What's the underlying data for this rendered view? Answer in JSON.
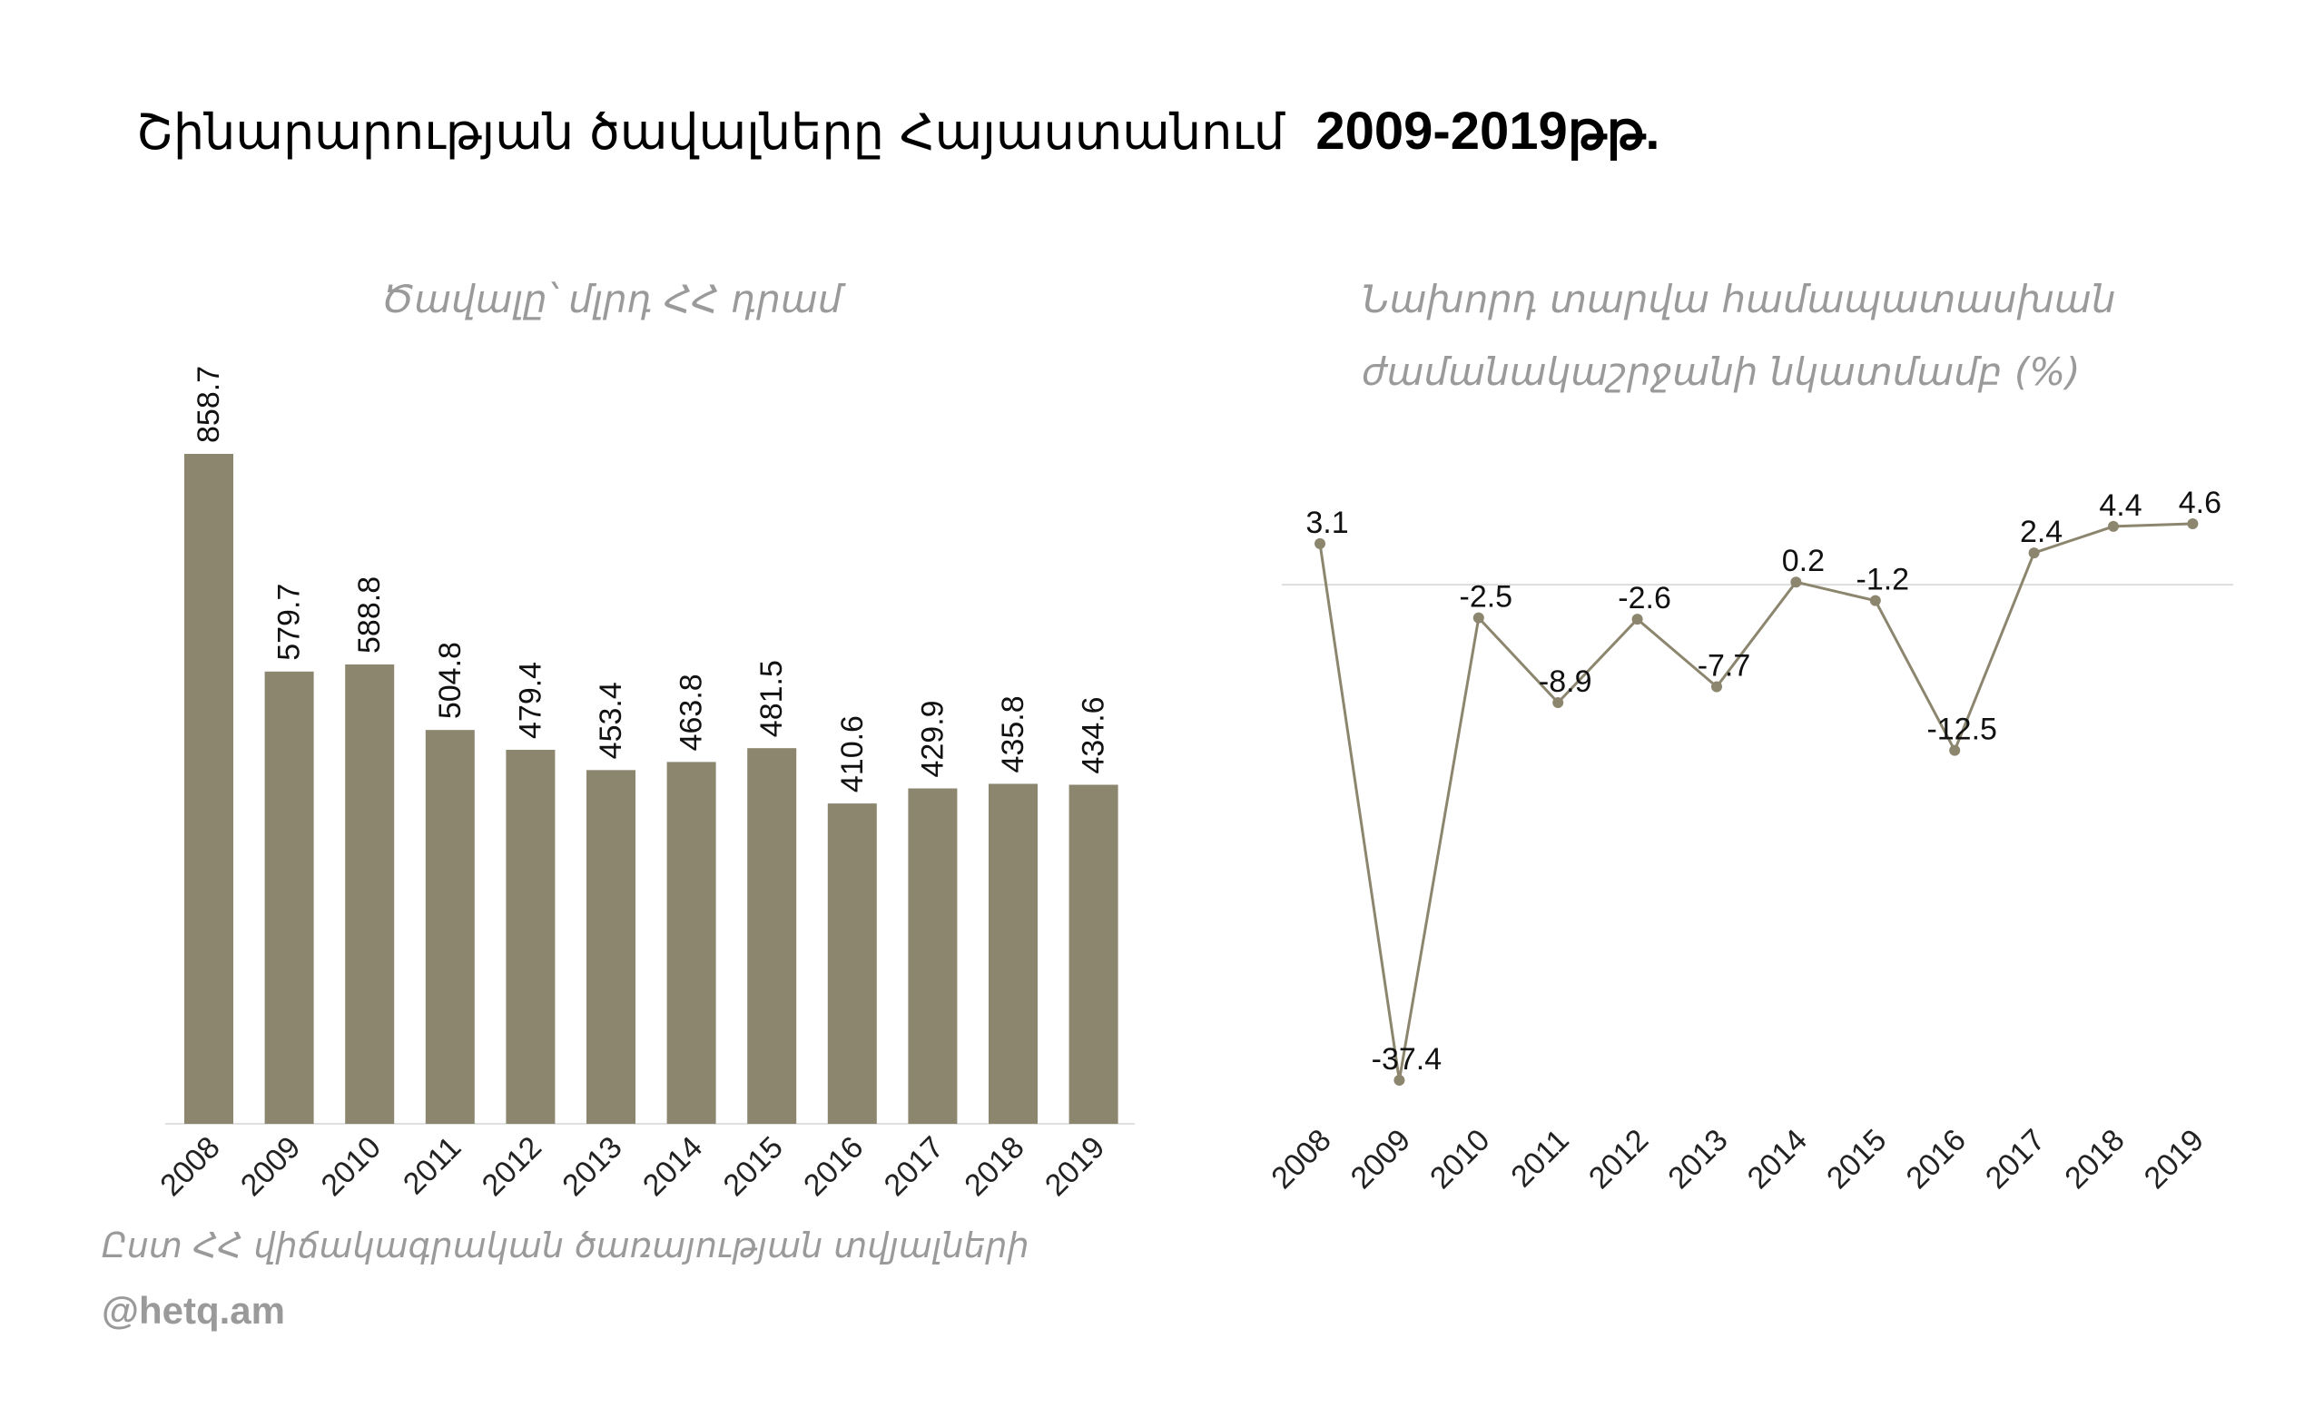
{
  "title": {
    "text": "Շինարարության ծավալները Հայաստանում",
    "years": "2009-2019թթ."
  },
  "source": "Ըստ ՀՀ վիճակագրական ծառայության տվյալների",
  "handle": "@hetq.am",
  "colors": {
    "bar": "#8c866f",
    "line": "#8c866f",
    "zero_line": "#dddddd",
    "axis": "#e0e0e0"
  },
  "chart_data": [
    {
      "type": "bar",
      "title": "Ծավալը՝ մլրդ ՀՀ դրամ",
      "categories": [
        "2008",
        "2009",
        "2010",
        "2011",
        "2012",
        "2013",
        "2014",
        "2015",
        "2016",
        "2017",
        "2018",
        "2019"
      ],
      "values": [
        858.7,
        579.7,
        588.8,
        504.8,
        479.4,
        453.4,
        463.8,
        481.5,
        410.6,
        429.9,
        435.8,
        434.6
      ],
      "value_labels": [
        "858.7",
        "579.7",
        "588.8",
        "504.8",
        "479.4",
        "453.4",
        "463.8",
        "481.5",
        "410.6",
        "429.9",
        "435.8",
        "434.6"
      ],
      "ylim": [
        0,
        858.7
      ],
      "grid": false
    },
    {
      "type": "line",
      "title_line1": "Նախորդ տարվա համապատասխան",
      "title_line2": "ժամանակաշրջանի նկատմամբ (%)",
      "categories": [
        "2008",
        "2009",
        "2010",
        "2011",
        "2012",
        "2013",
        "2014",
        "2015",
        "2016",
        "2017",
        "2018",
        "2019"
      ],
      "values": [
        3.1,
        -37.4,
        -2.5,
        -8.9,
        -2.6,
        -7.7,
        0.2,
        -1.2,
        -12.5,
        2.4,
        4.4,
        4.6
      ],
      "value_labels": [
        "3.1",
        "-37.4",
        "-2.5",
        "-8.9",
        "-2.6",
        "-7.7",
        "0.2",
        "-1.2",
        "-12.5",
        "2.4",
        "4.4",
        "4.6"
      ],
      "ylim": [
        -37.4,
        4.6
      ],
      "grid": false
    }
  ]
}
